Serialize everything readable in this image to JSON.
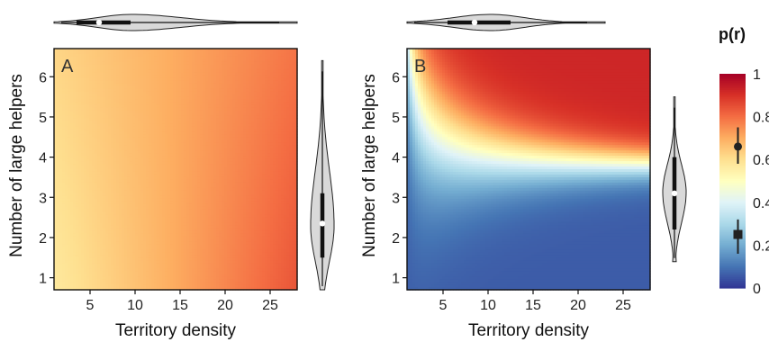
{
  "chart_data": [
    {
      "type": "heatmap",
      "panel_label": "A",
      "xlabel": "Territory density",
      "ylabel": "Number of large helpers",
      "xlim": [
        1,
        28
      ],
      "ylim": [
        0.7,
        6.7
      ],
      "xticks": [
        5,
        10,
        15,
        20,
        25
      ],
      "yticks": [
        1,
        2,
        3,
        4,
        5,
        6
      ],
      "value_model": "p(r) increases with territory density, weakly with helpers",
      "corner_values": {
        "x1_y1": 0.57,
        "x28_y1": 0.84,
        "x1_y6.7": 0.62,
        "x28_y6.7": 0.79
      },
      "marginal_x": {
        "type": "violin",
        "median": 6.0,
        "iqr": [
          3.5,
          9.5
        ],
        "range": [
          1,
          28
        ]
      },
      "marginal_y": {
        "type": "violin",
        "median": 2.35,
        "iqr": [
          1.5,
          3.1
        ],
        "range": [
          0.7,
          6.4
        ]
      }
    },
    {
      "type": "heatmap",
      "panel_label": "B",
      "xlabel": "Territory density",
      "ylabel": "Number of large helpers",
      "xlim": [
        1,
        28
      ],
      "ylim": [
        0.7,
        6.7
      ],
      "xticks": [
        5,
        10,
        15,
        20,
        25
      ],
      "yticks": [
        1,
        2,
        3,
        4,
        5,
        6
      ],
      "value_model": "p(r) high when helpers above ~3.7 (red), low below (blue); gradient sharpens with density",
      "marginal_x": {
        "type": "violin",
        "median": 8.5,
        "iqr": [
          5.5,
          12.5
        ],
        "range": [
          1,
          23
        ]
      },
      "marginal_y": {
        "type": "violin",
        "median": 3.1,
        "iqr": [
          2.2,
          4.0
        ],
        "range": [
          1.4,
          5.5
        ]
      }
    }
  ],
  "colorbar": {
    "title": "p(r)",
    "ticks": [
      "1",
      "0.8",
      "0.6",
      "0.4",
      "0.2",
      "0"
    ],
    "range": [
      0,
      1
    ],
    "stops": [
      "#313695",
      "#4575b4",
      "#74add1",
      "#abd9e9",
      "#e0f3f8",
      "#ffffbf",
      "#fee090",
      "#fdae61",
      "#f46d43",
      "#d73027",
      "#a50026"
    ],
    "markers": [
      {
        "shape": "circle",
        "value": 0.66,
        "lo": 0.58,
        "hi": 0.75
      },
      {
        "shape": "square",
        "value": 0.25,
        "lo": 0.16,
        "hi": 0.32
      }
    ]
  }
}
